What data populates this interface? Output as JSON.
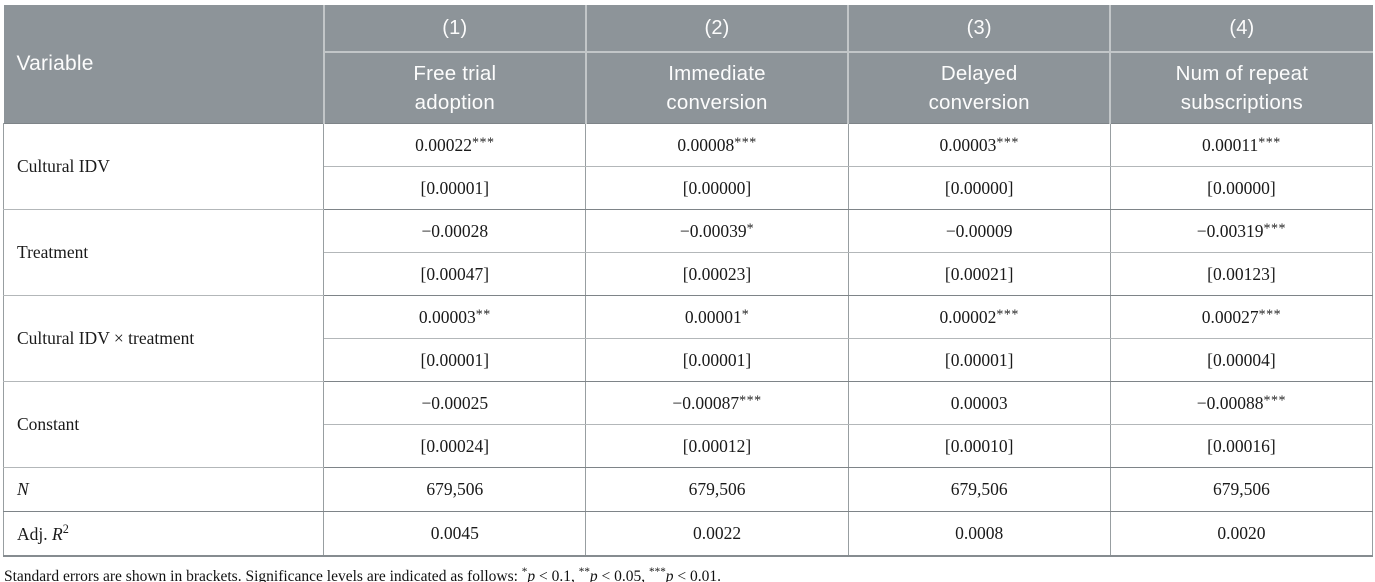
{
  "colors": {
    "header_bg": "#8d9499",
    "header_text": "#fcfcfc",
    "header_divider": "#c2c6c8",
    "border_dark": "#7e8488",
    "border_medium": "#989ea1",
    "border_light": "#b3b7b9",
    "body_text": "#1a1a1a"
  },
  "table": {
    "header": {
      "variable_label": "Variable",
      "columns": [
        {
          "number": "(1)",
          "label": "Free trial\nadoption"
        },
        {
          "number": "(2)",
          "label": "Immediate\nconversion"
        },
        {
          "number": "(3)",
          "label": "Delayed\nconversion"
        },
        {
          "number": "(4)",
          "label": "Num of repeat\nsubscriptions"
        }
      ]
    },
    "coefficient_groups": [
      {
        "variable": "Cultural IDV",
        "estimates": [
          "0.00022***",
          "0.00008***",
          "0.00003***",
          "0.00011***"
        ],
        "std_errors": [
          "[0.00001]",
          "[0.00000]",
          "[0.00000]",
          "[0.00000]"
        ]
      },
      {
        "variable": "Treatment",
        "estimates": [
          "−0.00028",
          "−0.00039*",
          "−0.00009",
          "−0.00319***"
        ],
        "std_errors": [
          "[0.00047]",
          "[0.00023]",
          "[0.00021]",
          "[0.00123]"
        ]
      },
      {
        "variable": "Cultural IDV × treatment",
        "estimates": [
          "0.00003**",
          "0.00001*",
          "0.00002***",
          "0.00027***"
        ],
        "std_errors": [
          "[0.00001]",
          "[0.00001]",
          "[0.00001]",
          "[0.00004]"
        ]
      },
      {
        "variable": "Constant",
        "estimates": [
          "−0.00025",
          "−0.00087***",
          "0.00003",
          "−0.00088***"
        ],
        "std_errors": [
          "[0.00024]",
          "[0.00012]",
          "[0.00010]",
          "[0.00016]"
        ]
      }
    ],
    "stat_rows": [
      {
        "label_prefix": "",
        "label_italic": "N",
        "label_sup": "",
        "values": [
          "679,506",
          "679,506",
          "679,506",
          "679,506"
        ]
      },
      {
        "label_prefix": "Adj. ",
        "label_italic": "R",
        "label_sup": "2",
        "values": [
          "0.0045",
          "0.0022",
          "0.0008",
          "0.0020"
        ]
      }
    ]
  },
  "footnote": {
    "intro": "Standard errors are shown in brackets. Significance levels are indicated as follows: ",
    "p_symbol": "p",
    "levels": [
      {
        "stars": "*",
        "condition": " < 0.1"
      },
      {
        "stars": "**",
        "condition": " < 0.05"
      },
      {
        "stars": "***",
        "condition": " < 0.01"
      }
    ],
    "separator": ", ",
    "suffix": "."
  }
}
